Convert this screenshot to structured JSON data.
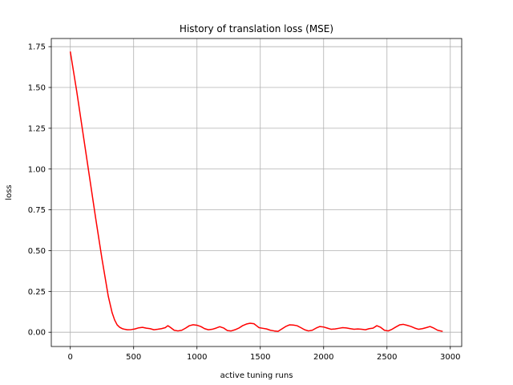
{
  "chart_data": {
    "type": "line",
    "title": "History of translation loss (MSE)",
    "xlabel": "active tuning runs",
    "ylabel": "loss",
    "xlim": [
      -150,
      3090
    ],
    "ylim": [
      -0.0875,
      1.8
    ],
    "grid": true,
    "x_ticks": [
      0,
      500,
      1000,
      1500,
      2000,
      2500,
      3000
    ],
    "x_tick_labels": [
      "0",
      "500",
      "1000",
      "1500",
      "2000",
      "2500",
      "3000"
    ],
    "y_ticks": [
      0.0,
      0.25,
      0.5,
      0.75,
      1.0,
      1.25,
      1.5,
      1.75
    ],
    "y_tick_labels": [
      "0.00",
      "0.25",
      "0.50",
      "0.75",
      "1.00",
      "1.25",
      "1.50",
      "1.75"
    ],
    "series": [
      {
        "color": "#ff0000",
        "x": [
          0,
          50,
          100,
          150,
          200,
          250,
          300,
          330,
          350,
          370,
          390,
          410,
          430,
          450,
          480,
          510,
          540,
          570,
          600,
          630,
          660,
          690,
          720,
          750,
          770,
          790,
          820,
          850,
          880,
          910,
          940,
          970,
          1000,
          1030,
          1060,
          1090,
          1120,
          1150,
          1180,
          1210,
          1240,
          1270,
          1300,
          1330,
          1360,
          1390,
          1420,
          1450,
          1470,
          1490,
          1520,
          1550,
          1580,
          1610,
          1640,
          1670,
          1700,
          1730,
          1760,
          1790,
          1820,
          1850,
          1880,
          1910,
          1940,
          1970,
          2000,
          2030,
          2060,
          2090,
          2120,
          2150,
          2180,
          2210,
          2240,
          2270,
          2300,
          2330,
          2360,
          2390,
          2420,
          2450,
          2480,
          2510,
          2540,
          2570,
          2600,
          2630,
          2660,
          2690,
          2720,
          2750,
          2780,
          2810,
          2840,
          2870,
          2900,
          2940
        ],
        "y": [
          1.72,
          1.48,
          1.22,
          0.96,
          0.7,
          0.45,
          0.22,
          0.12,
          0.075,
          0.045,
          0.03,
          0.022,
          0.018,
          0.015,
          0.016,
          0.02,
          0.027,
          0.03,
          0.025,
          0.022,
          0.015,
          0.018,
          0.022,
          0.028,
          0.04,
          0.03,
          0.012,
          0.008,
          0.012,
          0.025,
          0.04,
          0.046,
          0.043,
          0.035,
          0.022,
          0.015,
          0.018,
          0.025,
          0.034,
          0.026,
          0.01,
          0.008,
          0.015,
          0.025,
          0.04,
          0.05,
          0.055,
          0.052,
          0.04,
          0.028,
          0.024,
          0.02,
          0.012,
          0.008,
          0.005,
          0.02,
          0.035,
          0.045,
          0.044,
          0.04,
          0.028,
          0.015,
          0.008,
          0.012,
          0.025,
          0.035,
          0.032,
          0.025,
          0.018,
          0.02,
          0.024,
          0.028,
          0.026,
          0.022,
          0.018,
          0.02,
          0.018,
          0.015,
          0.022,
          0.025,
          0.04,
          0.03,
          0.012,
          0.008,
          0.018,
          0.032,
          0.045,
          0.048,
          0.042,
          0.035,
          0.025,
          0.018,
          0.022,
          0.028,
          0.035,
          0.025,
          0.012,
          0.005
        ]
      }
    ]
  }
}
